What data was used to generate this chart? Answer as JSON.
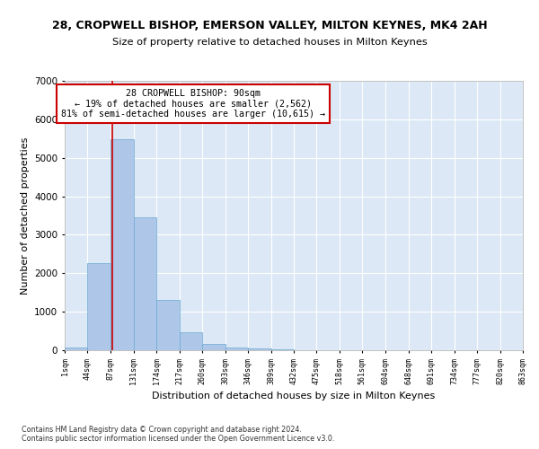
{
  "title": "28, CROPWELL BISHOP, EMERSON VALLEY, MILTON KEYNES, MK4 2AH",
  "subtitle": "Size of property relative to detached houses in Milton Keynes",
  "xlabel": "Distribution of detached houses by size in Milton Keynes",
  "ylabel": "Number of detached properties",
  "footer1": "Contains HM Land Registry data © Crown copyright and database right 2024.",
  "footer2": "Contains public sector information licensed under the Open Government Licence v3.0.",
  "bar_color": "#aec6e8",
  "bar_edge_color": "#6aaad4",
  "plot_bg_color": "#dce8f5",
  "fig_bg_color": "#ffffff",
  "grid_color": "#ffffff",
  "annotation_line_color": "#cc0000",
  "annotation_box_text": "28 CROPWELL BISHOP: 90sqm\n← 19% of detached houses are smaller (2,562)\n81% of semi-detached houses are larger (10,615) →",
  "property_sqm": 90,
  "bin_edges": [
    1,
    44,
    87,
    131,
    174,
    217,
    260,
    303,
    346,
    389,
    432,
    475,
    518,
    561,
    604,
    648,
    691,
    734,
    777,
    820,
    863
  ],
  "bar_heights": [
    80,
    2270,
    5480,
    3450,
    1310,
    460,
    155,
    80,
    50,
    30,
    10,
    5,
    3,
    2,
    1,
    1,
    1,
    0,
    0,
    0
  ],
  "ylim": [
    0,
    7000
  ],
  "yticks": [
    0,
    1000,
    2000,
    3000,
    4000,
    5000,
    6000,
    7000
  ]
}
